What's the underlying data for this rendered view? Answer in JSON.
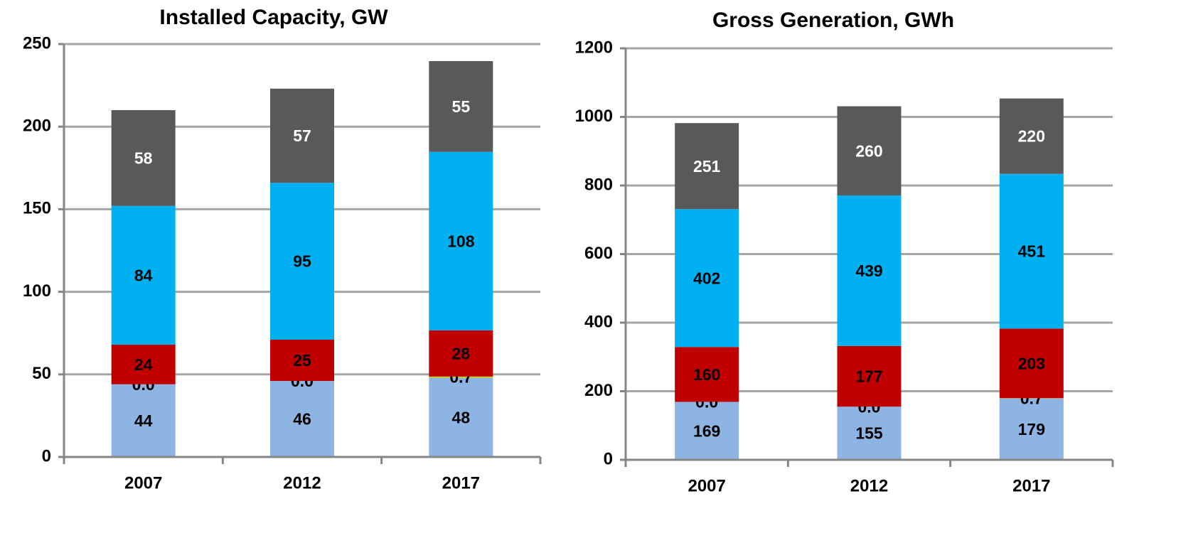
{
  "chart_data": [
    {
      "type": "bar",
      "stacked": true,
      "title": "Installed Capacity, GW",
      "categories": [
        "2007",
        "2012",
        "2017"
      ],
      "series": [
        {
          "color": "#8eb4e3",
          "values": [
            44,
            46,
            48
          ]
        },
        {
          "color": "#c4d600",
          "values": [
            0,
            0,
            0.7
          ],
          "value_labels": [
            "0.0",
            "0.0",
            "0.7"
          ]
        },
        {
          "color": "#c00000",
          "values": [
            24,
            25,
            28
          ]
        },
        {
          "color": "#00b0f0",
          "values": [
            84,
            95,
            108
          ]
        },
        {
          "color": "#595959",
          "values": [
            58,
            57,
            55
          ]
        }
      ],
      "ylim": [
        0,
        250
      ],
      "yticks": [
        0,
        50,
        100,
        150,
        200,
        250
      ],
      "grid": true
    },
    {
      "type": "bar",
      "stacked": true,
      "title": "Gross Generation, GWh",
      "categories": [
        "2007",
        "2012",
        "2017"
      ],
      "series": [
        {
          "color": "#8eb4e3",
          "values": [
            169,
            155,
            179
          ]
        },
        {
          "color": "#c4d600",
          "values": [
            0,
            0,
            0.7
          ],
          "value_labels": [
            "0.0",
            "0.0",
            "0.7"
          ]
        },
        {
          "color": "#c00000",
          "values": [
            160,
            177,
            203
          ]
        },
        {
          "color": "#00b0f0",
          "values": [
            402,
            439,
            451
          ]
        },
        {
          "color": "#595959",
          "values": [
            251,
            260,
            220
          ]
        }
      ],
      "ylim": [
        0,
        1200
      ],
      "yticks": [
        0,
        200,
        400,
        600,
        800,
        1000,
        1200
      ],
      "grid": true
    }
  ]
}
